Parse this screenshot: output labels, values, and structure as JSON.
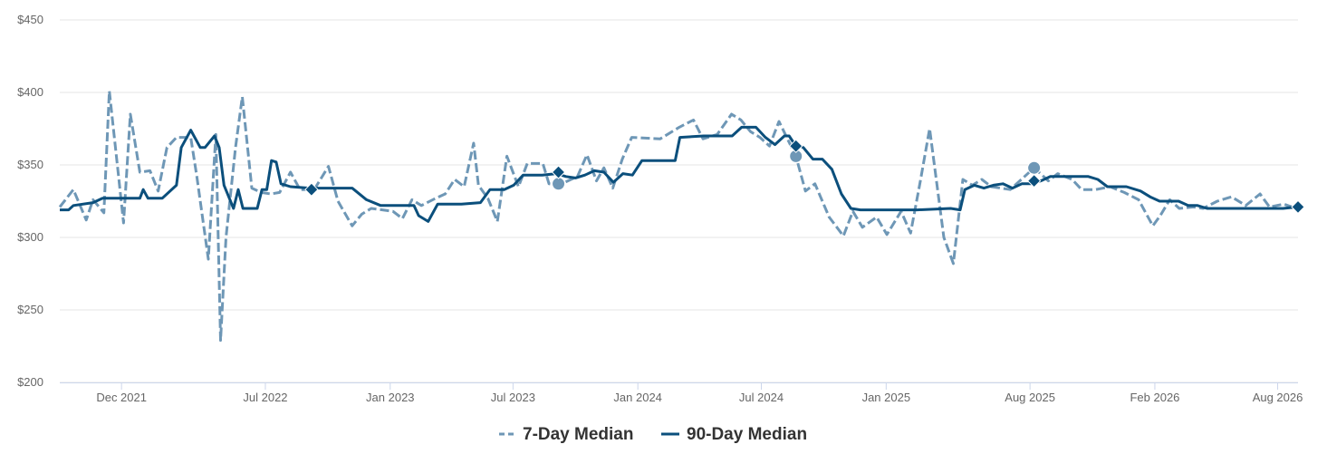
{
  "chart_data": {
    "type": "line",
    "title": "",
    "xlabel": "",
    "ylabel": "",
    "ylim": [
      200,
      450
    ],
    "y_ticks": [
      200,
      250,
      300,
      350,
      400,
      450
    ],
    "y_tick_labels": [
      "$200",
      "$250",
      "$300",
      "$350",
      "$400",
      "$450"
    ],
    "x_range": [
      "2021-09-01",
      "2026-08-31"
    ],
    "x_ticks": [
      {
        "date": "2021-12-01",
        "label": "Dec 2021"
      },
      {
        "date": "2022-07-01",
        "label": "Jul 2022"
      },
      {
        "date": "2023-01-01",
        "label": "Jan 2023"
      },
      {
        "date": "2023-07-01",
        "label": "Jul 2023"
      },
      {
        "date": "2024-01-01",
        "label": "Jan 2024"
      },
      {
        "date": "2024-07-01",
        "label": "Jul 2024"
      },
      {
        "date": "2025-01-01",
        "label": "Jan 2025"
      },
      {
        "date": "2025-08-01",
        "label": "Aug 2025"
      },
      {
        "date": "2026-02-01",
        "label": "Feb 2026"
      },
      {
        "date": "2026-08-01",
        "label": "Aug 2026"
      }
    ],
    "grid": true,
    "legend_position": "bottom-center",
    "series": [
      {
        "name": "7-Day Median",
        "color": "#6e97b6",
        "style": "dashed",
        "marker": "circle",
        "points": [
          [
            "2021-09-01",
            321
          ],
          [
            "2021-09-21",
            333
          ],
          [
            "2021-10-10",
            312
          ],
          [
            "2021-10-20",
            326
          ],
          [
            "2021-11-05",
            317
          ],
          [
            "2021-11-13",
            401
          ],
          [
            "2021-11-26",
            345
          ],
          [
            "2021-12-04",
            310
          ],
          [
            "2021-12-14",
            385
          ],
          [
            "2021-12-28",
            345
          ],
          [
            "2022-01-12",
            346
          ],
          [
            "2022-01-24",
            332
          ],
          [
            "2022-02-06",
            362
          ],
          [
            "2022-02-20",
            369
          ],
          [
            "2022-03-13",
            369
          ],
          [
            "2022-03-22",
            342
          ],
          [
            "2022-04-08",
            285
          ],
          [
            "2022-04-19",
            371
          ],
          [
            "2022-04-26",
            229
          ],
          [
            "2022-05-04",
            300
          ],
          [
            "2022-05-18",
            362
          ],
          [
            "2022-05-28",
            397
          ],
          [
            "2022-06-11",
            334
          ],
          [
            "2022-06-25",
            331
          ],
          [
            "2022-07-09",
            330
          ],
          [
            "2022-07-22",
            331
          ],
          [
            "2022-08-07",
            345
          ],
          [
            "2022-08-21",
            333
          ],
          [
            "2022-09-11",
            333
          ],
          [
            "2022-10-02",
            349
          ],
          [
            "2022-10-16",
            325
          ],
          [
            "2022-11-06",
            308
          ],
          [
            "2022-11-20",
            316
          ],
          [
            "2022-12-04",
            320
          ],
          [
            "2023-01-05",
            318
          ],
          [
            "2023-01-19",
            313
          ],
          [
            "2023-02-02",
            326
          ],
          [
            "2023-02-16",
            322
          ],
          [
            "2023-03-09",
            327
          ],
          [
            "2023-03-23",
            330
          ],
          [
            "2023-04-06",
            340
          ],
          [
            "2023-04-20",
            335
          ],
          [
            "2023-05-04",
            365
          ],
          [
            "2023-05-11",
            336
          ],
          [
            "2023-05-25",
            327
          ],
          [
            "2023-06-08",
            311
          ],
          [
            "2023-06-22",
            356
          ],
          [
            "2023-07-09",
            335
          ],
          [
            "2023-07-22",
            351
          ],
          [
            "2023-08-14",
            351
          ],
          [
            "2023-08-23",
            337
          ],
          [
            "2023-09-06",
            336
          ],
          [
            "2023-10-04",
            342
          ],
          [
            "2023-10-18",
            357
          ],
          [
            "2023-11-01",
            339
          ],
          [
            "2023-11-12",
            348
          ],
          [
            "2023-11-25",
            334
          ],
          [
            "2023-12-09",
            354
          ],
          [
            "2023-12-23",
            369
          ],
          [
            "2024-02-03",
            368
          ],
          [
            "2024-03-02",
            376
          ],
          [
            "2024-03-23",
            381
          ],
          [
            "2024-04-06",
            368
          ],
          [
            "2024-04-27",
            371
          ],
          [
            "2024-05-18",
            385
          ],
          [
            "2024-06-01",
            381
          ],
          [
            "2024-06-15",
            373
          ],
          [
            "2024-06-29",
            369
          ],
          [
            "2024-07-13",
            363
          ],
          [
            "2024-07-27",
            380
          ],
          [
            "2024-08-21",
            356
          ],
          [
            "2024-09-04",
            332
          ],
          [
            "2024-09-18",
            337
          ],
          [
            "2024-10-09",
            314
          ],
          [
            "2024-10-30",
            301
          ],
          [
            "2024-11-13",
            318
          ],
          [
            "2024-11-27",
            307
          ],
          [
            "2024-12-18",
            314
          ],
          [
            "2025-01-02",
            302
          ],
          [
            "2025-01-23",
            318
          ],
          [
            "2025-02-06",
            303
          ],
          [
            "2025-02-20",
            338
          ],
          [
            "2025-03-06",
            375
          ],
          [
            "2025-03-27",
            300
          ],
          [
            "2025-04-10",
            282
          ],
          [
            "2025-04-24",
            340
          ],
          [
            "2025-05-08",
            336
          ],
          [
            "2025-05-22",
            340
          ],
          [
            "2025-06-05",
            335
          ],
          [
            "2025-07-03",
            333
          ],
          [
            "2025-07-24",
            342
          ],
          [
            "2025-08-07",
            348
          ],
          [
            "2025-08-28",
            339
          ],
          [
            "2025-09-11",
            344
          ],
          [
            "2025-10-02",
            340
          ],
          [
            "2025-10-16",
            333
          ],
          [
            "2025-11-06",
            333
          ],
          [
            "2025-11-27",
            335
          ],
          [
            "2025-12-18",
            331
          ],
          [
            "2026-01-08",
            326
          ],
          [
            "2026-01-29",
            308
          ],
          [
            "2026-02-09",
            315
          ],
          [
            "2026-02-23",
            326
          ],
          [
            "2026-03-09",
            320
          ],
          [
            "2026-03-30",
            321
          ],
          [
            "2026-04-13",
            320
          ],
          [
            "2026-05-04",
            325
          ],
          [
            "2026-05-25",
            328
          ],
          [
            "2026-06-15",
            322
          ],
          [
            "2026-07-06",
            330
          ],
          [
            "2026-07-20",
            321
          ],
          [
            "2026-08-10",
            323
          ],
          [
            "2026-08-28",
            320
          ]
        ],
        "markers": [
          [
            "2023-09-06",
            337
          ],
          [
            "2024-08-21",
            356
          ],
          [
            "2025-08-07",
            348
          ]
        ]
      },
      {
        "name": "90-Day Median",
        "color": "#0b4f7c",
        "style": "solid",
        "marker": "diamond",
        "points": [
          [
            "2021-09-01",
            319
          ],
          [
            "2021-09-14",
            319
          ],
          [
            "2021-09-21",
            322
          ],
          [
            "2021-10-20",
            324
          ],
          [
            "2021-11-03",
            327
          ],
          [
            "2021-12-28",
            327
          ],
          [
            "2022-01-02",
            333
          ],
          [
            "2022-01-09",
            327
          ],
          [
            "2022-01-30",
            327
          ],
          [
            "2022-02-20",
            336
          ],
          [
            "2022-02-27",
            362
          ],
          [
            "2022-03-13",
            374
          ],
          [
            "2022-03-27",
            362
          ],
          [
            "2022-04-03",
            362
          ],
          [
            "2022-04-17",
            370
          ],
          [
            "2022-04-24",
            362
          ],
          [
            "2022-05-01",
            336
          ],
          [
            "2022-05-15",
            320
          ],
          [
            "2022-05-22",
            333
          ],
          [
            "2022-05-29",
            320
          ],
          [
            "2022-06-19",
            320
          ],
          [
            "2022-06-26",
            333
          ],
          [
            "2022-07-03",
            333
          ],
          [
            "2022-07-10",
            353
          ],
          [
            "2022-07-17",
            352
          ],
          [
            "2022-07-24",
            337
          ],
          [
            "2022-08-07",
            335
          ],
          [
            "2022-09-04",
            334
          ],
          [
            "2022-11-06",
            334
          ],
          [
            "2022-11-27",
            326
          ],
          [
            "2022-12-18",
            322
          ],
          [
            "2023-02-05",
            322
          ],
          [
            "2023-02-12",
            315
          ],
          [
            "2023-02-26",
            311
          ],
          [
            "2023-03-12",
            323
          ],
          [
            "2023-04-16",
            323
          ],
          [
            "2023-05-14",
            324
          ],
          [
            "2023-05-28",
            333
          ],
          [
            "2023-06-18",
            333
          ],
          [
            "2023-07-02",
            336
          ],
          [
            "2023-07-16",
            343
          ],
          [
            "2023-08-13",
            343
          ],
          [
            "2023-09-03",
            344
          ],
          [
            "2023-09-17",
            342
          ],
          [
            "2023-10-01",
            341
          ],
          [
            "2023-10-15",
            343
          ],
          [
            "2023-10-29",
            346
          ],
          [
            "2023-11-12",
            345
          ],
          [
            "2023-11-26",
            338
          ],
          [
            "2023-12-10",
            344
          ],
          [
            "2023-12-24",
            343
          ],
          [
            "2024-01-07",
            353
          ],
          [
            "2024-01-21",
            353
          ],
          [
            "2024-02-25",
            353
          ],
          [
            "2024-03-03",
            369
          ],
          [
            "2024-04-07",
            370
          ],
          [
            "2024-05-19",
            370
          ],
          [
            "2024-06-02",
            376
          ],
          [
            "2024-06-23",
            376
          ],
          [
            "2024-07-07",
            369
          ],
          [
            "2024-07-21",
            364
          ],
          [
            "2024-08-04",
            370
          ],
          [
            "2024-08-11",
            370
          ],
          [
            "2024-08-18",
            365
          ],
          [
            "2024-09-01",
            362
          ],
          [
            "2024-09-15",
            354
          ],
          [
            "2024-09-29",
            354
          ],
          [
            "2024-10-13",
            347
          ],
          [
            "2024-10-27",
            330
          ],
          [
            "2024-11-10",
            320
          ],
          [
            "2024-11-24",
            319
          ],
          [
            "2025-01-05",
            319
          ],
          [
            "2025-02-16",
            319
          ],
          [
            "2025-04-06",
            320
          ],
          [
            "2025-04-20",
            319
          ],
          [
            "2025-04-27",
            333
          ],
          [
            "2025-05-11",
            336
          ],
          [
            "2025-05-25",
            334
          ],
          [
            "2025-06-08",
            336
          ],
          [
            "2025-06-22",
            337
          ],
          [
            "2025-07-06",
            334
          ],
          [
            "2025-07-20",
            337
          ],
          [
            "2025-08-03",
            337
          ],
          [
            "2025-08-17",
            339
          ],
          [
            "2025-08-31",
            342
          ],
          [
            "2025-09-14",
            342
          ],
          [
            "2025-10-26",
            342
          ],
          [
            "2025-11-09",
            340
          ],
          [
            "2025-11-23",
            335
          ],
          [
            "2025-12-07",
            335
          ],
          [
            "2025-12-21",
            335
          ],
          [
            "2026-01-11",
            332
          ],
          [
            "2026-01-25",
            328
          ],
          [
            "2026-02-08",
            325
          ],
          [
            "2026-03-08",
            325
          ],
          [
            "2026-03-22",
            322
          ],
          [
            "2026-04-05",
            322
          ],
          [
            "2026-04-19",
            320
          ],
          [
            "2026-05-10",
            320
          ],
          [
            "2026-08-09",
            320
          ],
          [
            "2026-08-30",
            321
          ]
        ],
        "markers": [
          [
            "2022-09-07",
            333
          ],
          [
            "2023-09-06",
            345
          ],
          [
            "2024-08-21",
            363
          ],
          [
            "2025-08-07",
            339
          ],
          [
            "2026-08-31",
            321
          ]
        ]
      }
    ]
  }
}
